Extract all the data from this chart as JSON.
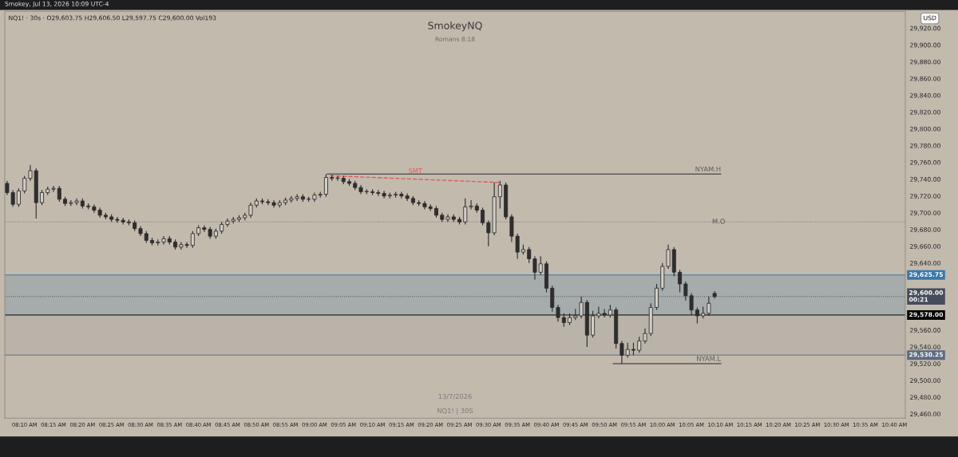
{
  "chart_data": {
    "type": "candlestick",
    "title": "SmokeyNQ",
    "subtitle": "Romans 8:18",
    "annotations": [
      "Smokey, Jul 13, 2026 10:09 UTC-4",
      "NQ1! · 30s · O29,603.75 H29,606.50 L29,597.75 C29,600.00 Vol193",
      "13/7/2026",
      "NQ1! | 30S",
      "USD"
    ],
    "x": [
      8.1167,
      8.1333,
      8.15,
      8.1667,
      8.1833,
      8.2,
      8.2167,
      8.2333,
      8.25,
      8.2667,
      8.2833,
      8.3,
      8.3167,
      8.3333,
      8.35,
      8.3667,
      8.3833,
      8.4,
      8.4167,
      8.4333,
      8.45,
      8.4667,
      8.4833,
      8.5,
      8.5167,
      8.5333,
      8.55,
      8.5667,
      8.5833,
      8.6,
      8.6167,
      8.6333,
      8.65,
      8.6667,
      8.6833,
      8.7,
      8.7167,
      8.7333,
      8.75,
      8.7667,
      8.7833,
      8.8,
      8.8167,
      8.8333,
      8.85,
      8.8667,
      8.8833,
      8.9,
      8.9167,
      8.9333,
      8.95,
      8.9667,
      8.9833,
      9.0,
      9.0167,
      9.0333,
      9.05,
      9.0667,
      9.0833,
      9.1,
      9.1167,
      9.1333,
      9.15,
      9.1667,
      9.1833,
      9.2,
      9.2167,
      9.2333,
      9.25,
      9.2667,
      9.2833,
      9.3,
      9.3167,
      9.3333,
      9.35,
      9.3667,
      9.3833,
      9.4,
      9.4167,
      9.4333,
      9.45,
      9.4667,
      9.4833,
      9.5,
      9.5167,
      9.5333,
      9.55,
      9.5667,
      9.5833,
      9.6,
      9.6167,
      9.6333,
      9.65,
      9.6667,
      9.6833,
      9.7,
      9.7167,
      9.7333,
      9.75,
      9.7667,
      9.7833,
      9.8,
      9.8167,
      9.8333,
      9.85,
      9.8667,
      9.8833,
      9.9,
      9.9167,
      9.9333,
      9.95,
      9.9667,
      9.9833,
      10.0,
      10.0167,
      10.0333,
      10.05,
      10.0667,
      10.0833,
      10.1,
      10.1167,
      10.1333,
      10.15
    ],
    "ohlc": [
      [
        29735,
        29738,
        29721,
        29724
      ],
      [
        29724,
        29727,
        29707,
        29710
      ],
      [
        29710,
        29729,
        29707,
        29726
      ],
      [
        29726,
        29744,
        29723,
        29741
      ],
      [
        29741,
        29757,
        29738,
        29750
      ],
      [
        29750,
        29753,
        29693,
        29712
      ],
      [
        29712,
        29727,
        29709,
        29724
      ],
      [
        29724,
        29731,
        29721,
        29728
      ],
      [
        29728,
        29732,
        29725,
        29729
      ],
      [
        29729,
        29732,
        29713,
        29716
      ],
      [
        29716,
        29719,
        29708,
        29711
      ],
      [
        29711,
        29715,
        29708,
        29712
      ],
      [
        29712,
        29717,
        29709,
        29714
      ],
      [
        29714,
        29717,
        29705,
        29708
      ],
      [
        29708,
        29711,
        29704,
        29707
      ],
      [
        29707,
        29710,
        29700,
        29703
      ],
      [
        29703,
        29706,
        29694,
        29697
      ],
      [
        29697,
        29700,
        29692,
        29695
      ],
      [
        29695,
        29698,
        29689,
        29692
      ],
      [
        29692,
        29695,
        29688,
        29691
      ],
      [
        29691,
        29694,
        29686,
        29689
      ],
      [
        29689,
        29692,
        29685,
        29688
      ],
      [
        29688,
        29691,
        29678,
        29681
      ],
      [
        29681,
        29684,
        29672,
        29675
      ],
      [
        29675,
        29678,
        29664,
        29667
      ],
      [
        29667,
        29670,
        29661,
        29664
      ],
      [
        29664,
        29668,
        29661,
        29665
      ],
      [
        29665,
        29672,
        29662,
        29669
      ],
      [
        29669,
        29672,
        29662,
        29665
      ],
      [
        29665,
        29668,
        29656,
        29659
      ],
      [
        29659,
        29665,
        29656,
        29662
      ],
      [
        29662,
        29665,
        29658,
        29661
      ],
      [
        29661,
        29678,
        29658,
        29675
      ],
      [
        29675,
        29685,
        29672,
        29682
      ],
      [
        29682,
        29685,
        29677,
        29680
      ],
      [
        29680,
        29683,
        29669,
        29672
      ],
      [
        29672,
        29681,
        29669,
        29678
      ],
      [
        29678,
        29689,
        29675,
        29686
      ],
      [
        29686,
        29693,
        29683,
        29690
      ],
      [
        29690,
        29695,
        29687,
        29692
      ],
      [
        29692,
        29697,
        29689,
        29694
      ],
      [
        29694,
        29700,
        29691,
        29697
      ],
      [
        29697,
        29712,
        29694,
        29709
      ],
      [
        29709,
        29717,
        29706,
        29714
      ],
      [
        29714,
        29717,
        29710,
        29713
      ],
      [
        29713,
        29716,
        29709,
        29712
      ],
      [
        29712,
        29715,
        29706,
        29709
      ],
      [
        29709,
        29715,
        29706,
        29712
      ],
      [
        29712,
        29718,
        29709,
        29715
      ],
      [
        29715,
        29720,
        29712,
        29717
      ],
      [
        29717,
        29722,
        29714,
        29719
      ],
      [
        29719,
        29722,
        29713,
        29716
      ],
      [
        29716,
        29719,
        29713,
        29716
      ],
      [
        29716,
        29724,
        29713,
        29721
      ],
      [
        29721,
        29725,
        29718,
        29722
      ],
      [
        29722,
        29746,
        29719,
        29742
      ],
      [
        29742,
        29745,
        29738,
        29741
      ],
      [
        29741,
        29744,
        29738,
        29741
      ],
      [
        29741,
        29744,
        29734,
        29737
      ],
      [
        29737,
        29740,
        29732,
        29735
      ],
      [
        29735,
        29738,
        29727,
        29730
      ],
      [
        29730,
        29733,
        29722,
        29725
      ],
      [
        29725,
        29728,
        29722,
        29725
      ],
      [
        29725,
        29728,
        29721,
        29724
      ],
      [
        29724,
        29727,
        29720,
        29723
      ],
      [
        29723,
        29726,
        29717,
        29720
      ],
      [
        29720,
        29724,
        29717,
        29721
      ],
      [
        29721,
        29725,
        29718,
        29722
      ],
      [
        29722,
        29725,
        29717,
        29720
      ],
      [
        29720,
        29723,
        29714,
        29717
      ],
      [
        29717,
        29720,
        29709,
        29712
      ],
      [
        29712,
        29715,
        29708,
        29711
      ],
      [
        29711,
        29714,
        29704,
        29707
      ],
      [
        29707,
        29710,
        29702,
        29705
      ],
      [
        29705,
        29708,
        29694,
        29697
      ],
      [
        29697,
        29700,
        29689,
        29692
      ],
      [
        29692,
        29698,
        29689,
        29695
      ],
      [
        29695,
        29698,
        29689,
        29692
      ],
      [
        29692,
        29695,
        29686,
        29689
      ],
      [
        29689,
        29717,
        29686,
        29707
      ],
      [
        29707,
        29715,
        29704,
        29708
      ],
      [
        29708,
        29711,
        29700,
        29703
      ],
      [
        29703,
        29706,
        29685,
        29688
      ],
      [
        29688,
        29691,
        29660,
        29676
      ],
      [
        29676,
        29736,
        29673,
        29719
      ],
      [
        29719,
        29738,
        29705,
        29733
      ],
      [
        29733,
        29736,
        29692,
        29695
      ],
      [
        29695,
        29698,
        29665,
        29672
      ],
      [
        29672,
        29675,
        29645,
        29653
      ],
      [
        29653,
        29662,
        29650,
        29656
      ],
      [
        29656,
        29659,
        29640,
        29645
      ],
      [
        29645,
        29648,
        29620,
        29629
      ],
      [
        29629,
        29648,
        29626,
        29639
      ],
      [
        29639,
        29642,
        29605,
        29610
      ],
      [
        29610,
        29613,
        29582,
        29587
      ],
      [
        29587,
        29590,
        29570,
        29575
      ],
      [
        29575,
        29580,
        29564,
        29569
      ],
      [
        29569,
        29580,
        29566,
        29575
      ],
      [
        29575,
        29585,
        29572,
        29577
      ],
      [
        29577,
        29600,
        29574,
        29593
      ],
      [
        29593,
        29596,
        29540,
        29554
      ],
      [
        29554,
        29583,
        29551,
        29577
      ],
      [
        29577,
        29588,
        29574,
        29580
      ],
      [
        29580,
        29585,
        29575,
        29578
      ],
      [
        29578,
        29590,
        29575,
        29584
      ],
      [
        29584,
        29587,
        29538,
        29544
      ],
      [
        29544,
        29547,
        29520,
        29530
      ],
      [
        29530,
        29545,
        29527,
        29537
      ],
      [
        29537,
        29545,
        29530,
        29536
      ],
      [
        29536,
        29552,
        29533,
        29547
      ],
      [
        29547,
        29562,
        29544,
        29556
      ],
      [
        29556,
        29592,
        29553,
        29587
      ],
      [
        29587,
        29615,
        29584,
        29610
      ],
      [
        29610,
        29640,
        29607,
        29636
      ],
      [
        29636,
        29662,
        29633,
        29656
      ],
      [
        29656,
        29659,
        29624,
        29629
      ],
      [
        29629,
        29632,
        29605,
        29615
      ],
      [
        29615,
        29618,
        29595,
        29601
      ],
      [
        29601,
        29604,
        29578,
        29584
      ],
      [
        29584,
        29587,
        29568,
        29577
      ],
      [
        29577,
        29588,
        29574,
        29580
      ],
      [
        29580,
        29600,
        29577,
        29592
      ],
      [
        29603.75,
        29606.5,
        29597.75,
        29600
      ]
    ],
    "series": [
      {
        "type": "line",
        "name": "NYAM.H",
        "color": "#5a5a5a",
        "line_style": "solid",
        "x": [
          9.0367,
          10.1683
        ],
        "values": [
          29746,
          29746
        ]
      },
      {
        "type": "line",
        "name": "NYAM.L",
        "color": "#5a5a5a",
        "line_style": "solid",
        "x": [
          9.8583,
          10.1683
        ],
        "values": [
          29520,
          29520
        ]
      },
      {
        "type": "line",
        "name": "SMT",
        "color": "#e05a5a",
        "line_style": "dashed",
        "x": [
          9.0467,
          9.5333
        ],
        "values": [
          29744,
          29736
        ]
      }
    ],
    "ref_lines": [
      {
        "axis": "y",
        "value": 29689,
        "label": "M.O",
        "line_style": "dotted"
      },
      {
        "axis": "y",
        "value": 29625.75,
        "label": "29,625.75",
        "color": "#3a78a8"
      },
      {
        "axis": "y",
        "value": 29600,
        "label": "29,600.00\n00:21",
        "color": "#454c5c",
        "line_style": "dotted"
      },
      {
        "axis": "y",
        "value": 29578,
        "label": "29,578.00",
        "color": "#000000"
      },
      {
        "axis": "y",
        "value": 29530.25,
        "label": "29,530.25",
        "color": "#5d6b80"
      }
    ],
    "bands": [
      {
        "axis": "y",
        "from": 29578,
        "to": 29625.75,
        "color": "#3f79a6"
      },
      {
        "axis": "y",
        "from": 29530.25,
        "to": 29578,
        "color": "#9c9c9c"
      }
    ],
    "xlim": [
      8.11,
      10.698
    ],
    "ylim": [
      29455,
      29940
    ],
    "xticks": [
      {
        "value": 8.1667,
        "label": "08:10 AM"
      },
      {
        "value": 8.25,
        "label": "08:15 AM"
      },
      {
        "value": 8.3333,
        "label": "08:20 AM"
      },
      {
        "value": 8.4167,
        "label": "08:25 AM"
      },
      {
        "value": 8.5,
        "label": "08:30 AM"
      },
      {
        "value": 8.5833,
        "label": "08:35 AM"
      },
      {
        "value": 8.6667,
        "label": "08:40 AM"
      },
      {
        "value": 8.75,
        "label": "08:45 AM"
      },
      {
        "value": 8.8333,
        "label": "08:50 AM"
      },
      {
        "value": 8.9167,
        "label": "08:55 AM"
      },
      {
        "value": 9.0,
        "label": "09:00 AM"
      },
      {
        "value": 9.0833,
        "label": "09:05 AM"
      },
      {
        "value": 9.1667,
        "label": "09:10 AM"
      },
      {
        "value": 9.25,
        "label": "09:15 AM"
      },
      {
        "value": 9.3333,
        "label": "09:20 AM"
      },
      {
        "value": 9.4167,
        "label": "09:25 AM"
      },
      {
        "value": 9.5,
        "label": "09:30 AM"
      },
      {
        "value": 9.5833,
        "label": "09:35 AM"
      },
      {
        "value": 9.6667,
        "label": "09:40 AM"
      },
      {
        "value": 9.75,
        "label": "09:45 AM"
      },
      {
        "value": 9.8333,
        "label": "09:50 AM"
      },
      {
        "value": 9.9167,
        "label": "09:55 AM"
      },
      {
        "value": 10.0,
        "label": "10:00 AM"
      },
      {
        "value": 10.0833,
        "label": "10:05 AM"
      },
      {
        "value": 10.1667,
        "label": "10:10 AM"
      },
      {
        "value": 10.25,
        "label": "10:15 AM"
      },
      {
        "value": 10.3333,
        "label": "10:20 AM"
      },
      {
        "value": 10.4167,
        "label": "10:25 AM"
      },
      {
        "value": 10.5,
        "label": "10:30 AM"
      },
      {
        "value": 10.5833,
        "label": "10:35 AM"
      },
      {
        "value": 10.6667,
        "label": "10:40 AM"
      }
    ],
    "yticks": [
      {
        "value": 29460,
        "label": "29,460.00"
      },
      {
        "value": 29480,
        "label": "29,480.00"
      },
      {
        "value": 29500,
        "label": "29,500.00"
      },
      {
        "value": 29520,
        "label": "29,520.00"
      },
      {
        "value": 29540,
        "label": "29,540.00"
      },
      {
        "value": 29560,
        "label": "29,560.00"
      },
      {
        "value": 29640,
        "label": "29,640.00"
      },
      {
        "value": 29660,
        "label": "29,660.00"
      },
      {
        "value": 29680,
        "label": "29,680.00"
      },
      {
        "value": 29700,
        "label": "29,700.00"
      },
      {
        "value": 29720,
        "label": "29,720.00"
      },
      {
        "value": 29740,
        "label": "29,740.00"
      },
      {
        "value": 29760,
        "label": "29,760.00"
      },
      {
        "value": 29780,
        "label": "29,780.00"
      },
      {
        "value": 29800,
        "label": "29,800.00"
      },
      {
        "value": 29820,
        "label": "29,820.00"
      },
      {
        "value": 29840,
        "label": "29,840.00"
      },
      {
        "value": 29860,
        "label": "29,860.00"
      },
      {
        "value": 29880,
        "label": "29,880.00"
      },
      {
        "value": 29900,
        "label": "29,900.00"
      },
      {
        "value": 29920,
        "label": "29,920.00"
      }
    ]
  }
}
